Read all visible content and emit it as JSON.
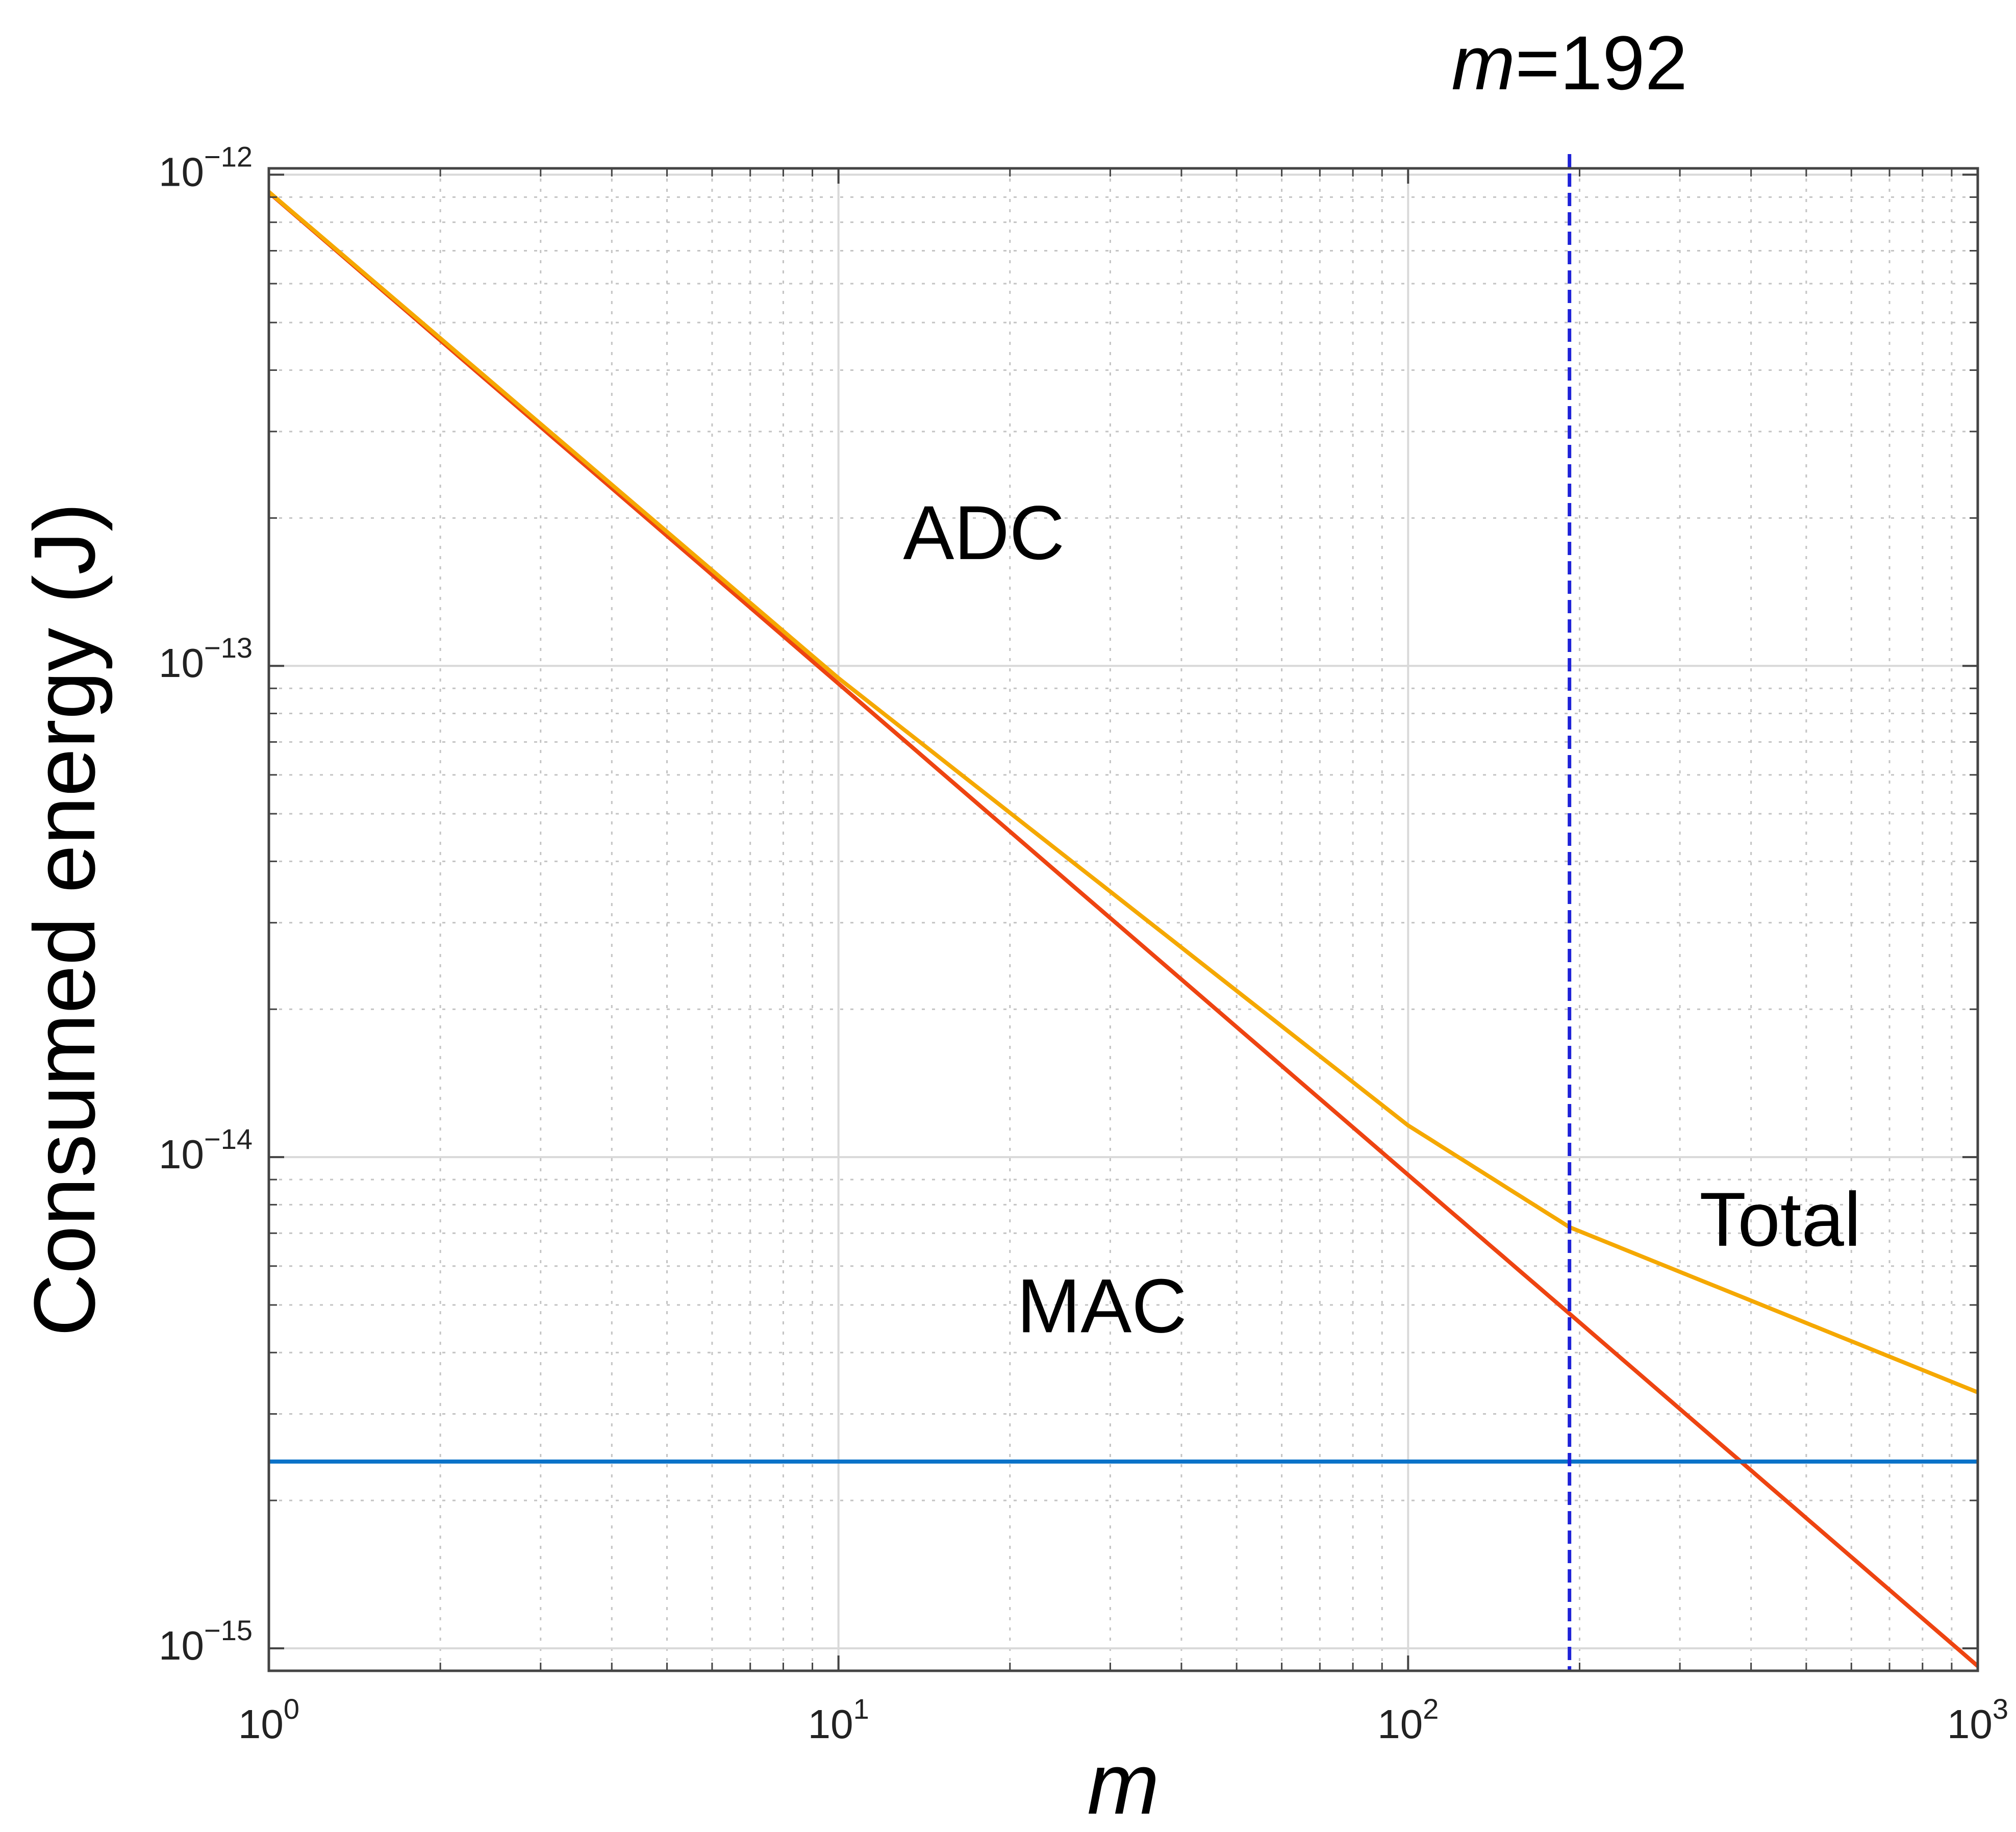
{
  "chart_data": {
    "type": "line",
    "title": "",
    "xlabel": "m",
    "ylabel": "Consumed energy (J)",
    "xscale": "log",
    "yscale": "log",
    "xlim": [
      1,
      1000
    ],
    "ylim": [
      9e-16,
      1.03e-12
    ],
    "grid": true,
    "x_ticks": [
      {
        "value": 1,
        "base": "10",
        "exp": "0"
      },
      {
        "value": 10,
        "base": "10",
        "exp": "1"
      },
      {
        "value": 100,
        "base": "10",
        "exp": "2"
      },
      {
        "value": 1000,
        "base": "10",
        "exp": "3"
      }
    ],
    "y_ticks": [
      {
        "value": 1e-12,
        "base": "10",
        "exp": "−12"
      },
      {
        "value": 1e-13,
        "base": "10",
        "exp": "−13"
      },
      {
        "value": 1e-14,
        "base": "10",
        "exp": "−14"
      },
      {
        "value": 1e-15,
        "base": "10",
        "exp": "−15"
      }
    ],
    "series": [
      {
        "name": "ADC",
        "color": "#EE4411",
        "x": [
          1,
          10,
          100,
          192,
          1000
        ],
        "y": [
          9.2e-13,
          9.2e-14,
          9.2e-15,
          4.8e-15,
          9.2e-16
        ]
      },
      {
        "name": "MAC",
        "color": "#0A72C8",
        "x": [
          1,
          1000
        ],
        "y": [
          2.4e-15,
          2.4e-15
        ]
      },
      {
        "name": "Total",
        "color": "#F5A800",
        "x": [
          1,
          10,
          100,
          192,
          1000
        ],
        "y": [
          9.224e-13,
          9.44e-14,
          1.16e-14,
          7.2e-15,
          3.32e-15
        ]
      }
    ],
    "annotations": [
      {
        "label": "ADC",
        "x": 18,
        "y": 1.65e-13
      },
      {
        "label": "MAC",
        "x": 29,
        "y": 4.4e-15
      },
      {
        "label": "Total",
        "x": 450,
        "y": 6.6e-15
      }
    ],
    "marker": {
      "x": 192,
      "var": "m",
      "text": "=192",
      "color": "#1E22D8"
    }
  }
}
